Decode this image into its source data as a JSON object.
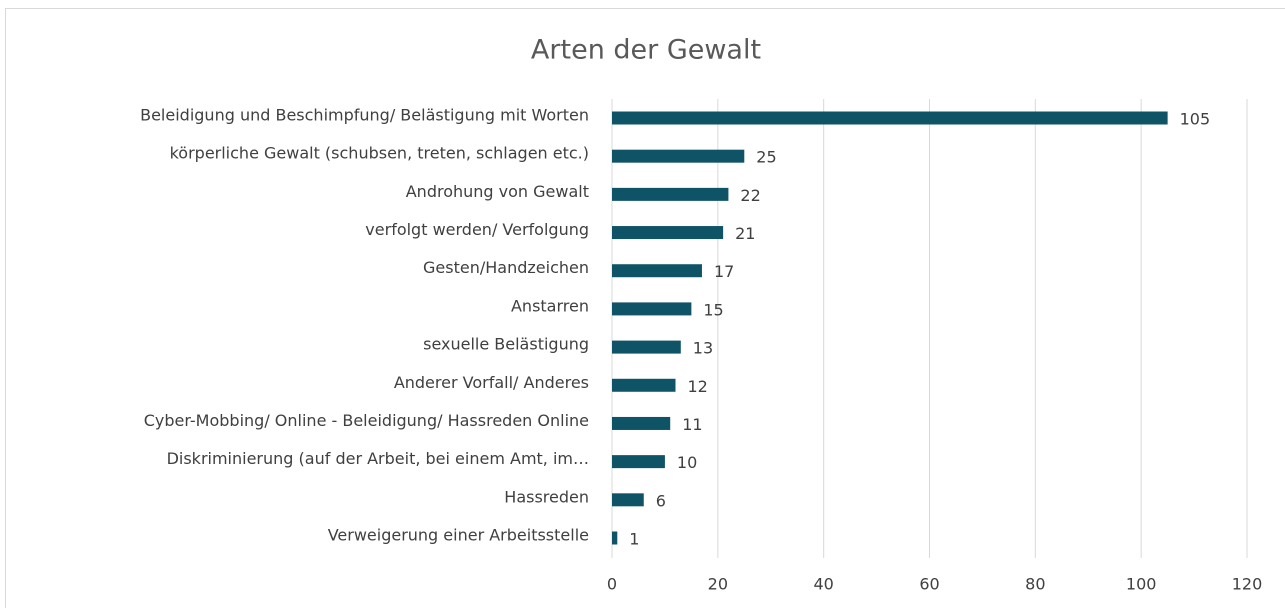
{
  "chart_data": {
    "type": "bar",
    "orientation": "horizontal",
    "title": "Arten der Gewalt",
    "categories": [
      "Beleidigung und Beschimpfung/ Belästigung mit Worten",
      "körperliche Gewalt (schubsen, treten, schlagen etc.)",
      "Androhung von Gewalt",
      "verfolgt werden/ Verfolgung",
      "Gesten/Handzeichen",
      "Anstarren",
      "sexuelle Belästigung",
      "Anderer Vorfall/ Anderes",
      "Cyber-Mobbing/ Online - Beleidigung/ Hassreden Online",
      "Diskriminierung (auf der Arbeit, bei einem Amt, im…",
      "Hassreden",
      "Verweigerung einer Arbeitsstelle"
    ],
    "values": [
      105,
      25,
      22,
      21,
      17,
      15,
      13,
      12,
      11,
      10,
      6,
      1
    ],
    "color": "#0f5366",
    "xlim": [
      0,
      120
    ],
    "xticks": [
      0,
      20,
      40,
      60,
      80,
      100,
      120
    ],
    "grid": true
  }
}
